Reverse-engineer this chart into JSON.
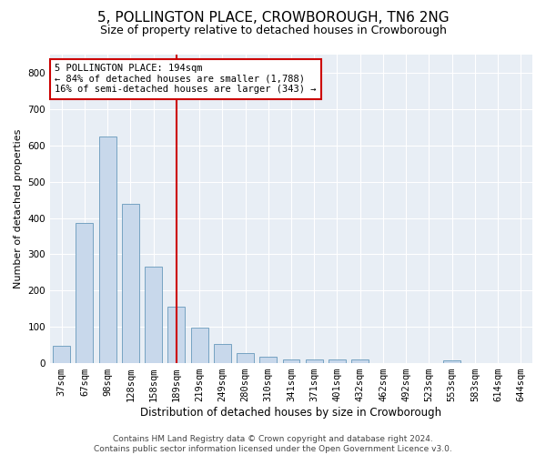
{
  "title": "5, POLLINGTON PLACE, CROWBOROUGH, TN6 2NG",
  "subtitle": "Size of property relative to detached houses in Crowborough",
  "xlabel": "Distribution of detached houses by size in Crowborough",
  "ylabel": "Number of detached properties",
  "bar_color": "#c8d8eb",
  "bar_edge_color": "#6699bb",
  "vline_color": "#cc0000",
  "annotation_text": "5 POLLINGTON PLACE: 194sqm\n← 84% of detached houses are smaller (1,788)\n16% of semi-detached houses are larger (343) →",
  "annotation_box_color": "white",
  "annotation_box_edge": "#cc0000",
  "bins": [
    "37sqm",
    "67sqm",
    "98sqm",
    "128sqm",
    "158sqm",
    "189sqm",
    "219sqm",
    "249sqm",
    "280sqm",
    "310sqm",
    "341sqm",
    "371sqm",
    "401sqm",
    "432sqm",
    "462sqm",
    "492sqm",
    "523sqm",
    "553sqm",
    "583sqm",
    "614sqm",
    "644sqm"
  ],
  "heights": [
    47,
    385,
    625,
    440,
    267,
    155,
    97,
    53,
    28,
    17,
    11,
    11,
    11,
    10,
    0,
    0,
    0,
    7,
    0,
    0,
    0
  ],
  "ylim": [
    0,
    850
  ],
  "yticks": [
    0,
    100,
    200,
    300,
    400,
    500,
    600,
    700,
    800
  ],
  "background_color": "#e8eef5",
  "footer": "Contains HM Land Registry data © Crown copyright and database right 2024.\nContains public sector information licensed under the Open Government Licence v3.0.",
  "title_fontsize": 11,
  "subtitle_fontsize": 9,
  "xlabel_fontsize": 8.5,
  "ylabel_fontsize": 8,
  "tick_fontsize": 7.5,
  "footer_fontsize": 6.5
}
